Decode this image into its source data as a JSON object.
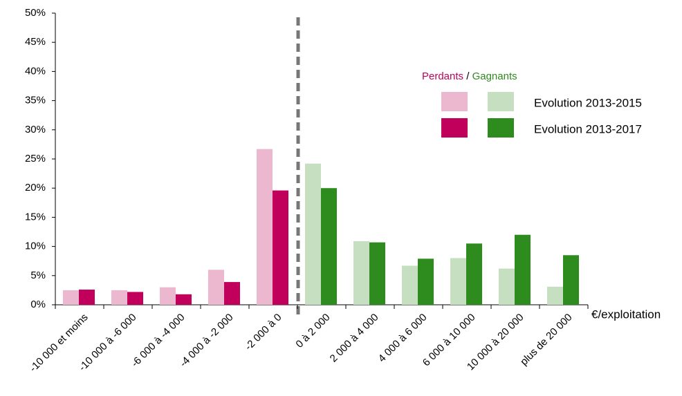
{
  "chart_data": {
    "type": "bar",
    "categories": [
      "-10 000 et moins",
      "-10 000 à -6 000",
      "-6 000 à -4 000",
      "-4 000 à -2 000",
      "-2 000 à 0",
      "0 à 2 000",
      "2 000 à 4 000",
      "4 000 à 6 000",
      "6 000 à 10 000",
      "10 000 à 20 000",
      "plus de 20 000"
    ],
    "series": [
      {
        "name": "Evolution 2013-2015",
        "colors": [
          "#ebb8d0",
          "#ebb8d0",
          "#ebb8d0",
          "#ebb8d0",
          "#ebb8d0",
          "#c5dfc0",
          "#c5dfc0",
          "#c5dfc0",
          "#c5dfc0",
          "#c5dfc0",
          "#c5dfc0"
        ],
        "values": [
          2.5,
          2.5,
          3.0,
          6.0,
          26.7,
          24.2,
          10.9,
          6.7,
          8.0,
          6.2,
          3.1
        ]
      },
      {
        "name": "Evolution 2013-2017",
        "colors": [
          "#c0005a",
          "#c0005a",
          "#c0005a",
          "#c0005a",
          "#c0005a",
          "#2e8b1e",
          "#2e8b1e",
          "#2e8b1e",
          "#2e8b1e",
          "#2e8b1e",
          "#2e8b1e"
        ],
        "values": [
          2.6,
          2.2,
          1.8,
          3.9,
          19.6,
          20.0,
          10.7,
          7.9,
          10.5,
          12.0,
          8.5
        ]
      }
    ],
    "legend_header": {
      "losers": "Perdants",
      "separator": "/",
      "winners": "Gagnants",
      "losers_color": "#c0005a",
      "winners_color": "#2e8b1e"
    },
    "x_axis_label": "€/exploitation",
    "ylim": [
      0,
      50
    ],
    "yticks": [
      {
        "value": 0,
        "label": "0%"
      },
      {
        "value": 5,
        "label": "5%"
      },
      {
        "value": 10,
        "label": "10%"
      },
      {
        "value": 15,
        "label": "15%"
      },
      {
        "value": 20,
        "label": "20%"
      },
      {
        "value": 25,
        "label": "25%"
      },
      {
        "value": 30,
        "label": "30%"
      },
      {
        "value": 35,
        "label": "35%"
      },
      {
        "value": 40,
        "label": "40%"
      },
      {
        "value": 45,
        "label": "45%"
      },
      {
        "value": 50,
        "label": "50%"
      }
    ]
  }
}
